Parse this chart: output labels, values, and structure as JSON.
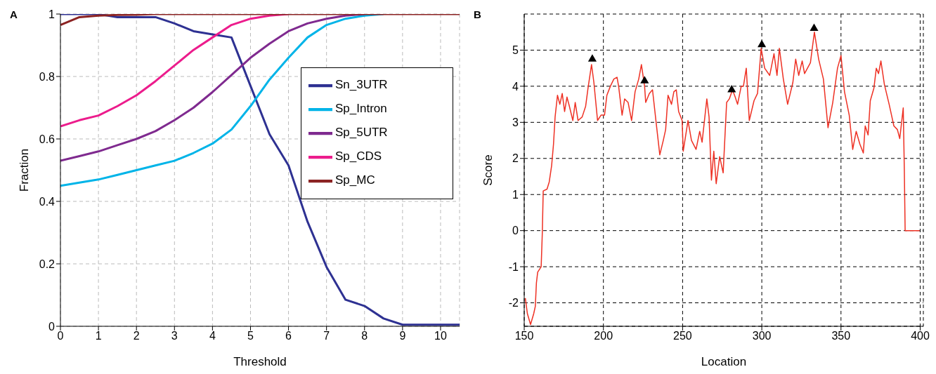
{
  "chart_data": [
    {
      "type": "line",
      "title": "A",
      "xlabel": "Threshold",
      "ylabel": "Fraction",
      "x": [
        0,
        0.5,
        1,
        1.5,
        2,
        2.5,
        3,
        3.5,
        4,
        4.5,
        5,
        5.5,
        6,
        6.5,
        7,
        7.5,
        8,
        8.5,
        9,
        9.5,
        10,
        10.5
      ],
      "xlim": [
        0,
        10.5
      ],
      "xticks": [
        0,
        1,
        2,
        3,
        4,
        5,
        6,
        7,
        8,
        9,
        10
      ],
      "ylim": [
        0,
        1
      ],
      "yticks": [
        0,
        0.2,
        0.4,
        0.6,
        0.8,
        1
      ],
      "grid": true,
      "legend": "right",
      "series": [
        {
          "name": "Sn_3UTR",
          "color": "#2e3192",
          "values": [
            1,
            1,
            1,
            0.99,
            0.99,
            0.99,
            0.97,
            0.945,
            0.935,
            0.925,
            0.77,
            0.615,
            0.515,
            0.335,
            0.19,
            0.085,
            0.065,
            0.025,
            0.005,
            0.005,
            0.005,
            0.005
          ]
        },
        {
          "name": "Sp_Intron",
          "color": "#00b4e8",
          "values": [
            0.45,
            0.46,
            0.47,
            0.485,
            0.5,
            0.515,
            0.53,
            0.555,
            0.585,
            0.63,
            0.705,
            0.79,
            0.86,
            0.925,
            0.965,
            0.985,
            0.995,
            1,
            null,
            null,
            null,
            null
          ]
        },
        {
          "name": "Sp_5UTR",
          "color": "#7f2a8f",
          "values": [
            0.53,
            0.545,
            0.56,
            0.58,
            0.6,
            0.625,
            0.66,
            0.7,
            0.75,
            0.805,
            0.86,
            0.905,
            0.945,
            0.97,
            0.985,
            0.995,
            1,
            null,
            null,
            null,
            null,
            null
          ]
        },
        {
          "name": "Sp_CDS",
          "color": "#ec1c8c",
          "values": [
            0.64,
            0.66,
            0.675,
            0.705,
            0.74,
            0.785,
            0.835,
            0.885,
            0.925,
            0.965,
            0.985,
            0.995,
            1,
            null,
            null,
            null,
            null,
            null,
            null,
            null,
            null,
            null
          ]
        },
        {
          "name": "Sp_MC",
          "color": "#8b2323",
          "values": [
            0.965,
            0.99,
            0.995,
            0.997,
            0.998,
            1,
            1,
            1,
            1,
            1,
            1,
            1,
            1,
            1,
            1,
            1,
            1,
            1,
            1,
            1,
            1,
            1
          ]
        }
      ]
    },
    {
      "type": "line",
      "title": "B",
      "xlabel": "Location",
      "ylabel": "Score",
      "xlim": [
        150,
        402
      ],
      "xticks": [
        150,
        200,
        250,
        300,
        350,
        400
      ],
      "ylim": [
        -2.65,
        6
      ],
      "yticks": [
        -2,
        -1,
        0,
        1,
        2,
        3,
        4,
        5
      ],
      "grid": true,
      "series": [
        {
          "color": "#ee3124",
          "x": [
            150.7,
            152,
            154,
            156,
            157,
            157.7,
            158.5,
            160.7,
            161.4,
            162,
            164.4,
            165.8,
            167.3,
            168.5,
            169.5,
            171,
            172.5,
            174,
            175.5,
            177,
            178.5,
            180.7,
            182.2,
            184,
            186.6,
            188.8,
            190.3,
            192.5,
            194,
            196.3,
            198.5,
            200.7,
            202.2,
            204.4,
            206.6,
            208.6,
            209.6,
            211.8,
            213.4,
            215.6,
            217.8,
            220,
            222.3,
            224,
            226,
            226.7,
            229,
            231,
            233.4,
            235.6,
            237.8,
            239.3,
            240.8,
            243,
            244.5,
            246,
            247.5,
            249.7,
            250.4,
            253.4,
            255.6,
            258.5,
            260.8,
            262.3,
            265.3,
            266.7,
            268.2,
            269.7,
            271.2,
            273.4,
            275.6,
            277.8,
            279.5,
            281.5,
            283.2,
            284.7,
            287,
            288.4,
            290.2,
            292.1,
            295.1,
            297.3,
            299.6,
            301.8,
            305,
            307.7,
            309.6,
            311.1,
            313.6,
            316.3,
            319.6,
            321.4,
            323.3,
            325.5,
            327,
            330.7,
            333.2,
            335.9,
            338.9,
            341.8,
            344.8,
            347.8,
            350,
            352.2,
            355.2,
            357.4,
            359.6,
            361.9,
            364.1,
            365.3,
            367.1,
            368.5,
            370.8,
            372.3,
            373.7,
            375.2,
            377.4,
            380.4,
            383.4,
            385.6,
            387.1,
            389.3,
            390,
            390.5,
            399.7
          ],
          "values": [
            -1.87,
            -2.3,
            -2.6,
            -2.3,
            -2.1,
            -1.45,
            -1.15,
            -1.0,
            -0.1,
            1.1,
            1.15,
            1.35,
            1.8,
            2.4,
            3.15,
            3.75,
            3.5,
            3.8,
            3.3,
            3.7,
            3.45,
            3.05,
            3.55,
            3.05,
            3.15,
            3.45,
            3.95,
            4.6,
            4.1,
            3.05,
            3.2,
            3.2,
            3.75,
            4.0,
            4.2,
            4.25,
            4.0,
            3.2,
            3.65,
            3.55,
            3.05,
            3.85,
            4.2,
            4.6,
            4.0,
            3.55,
            3.8,
            3.9,
            2.95,
            2.1,
            2.5,
            2.8,
            3.75,
            3.5,
            3.85,
            3.9,
            3.3,
            3.05,
            2.2,
            3.05,
            2.5,
            2.25,
            2.75,
            2.45,
            3.65,
            3.15,
            1.4,
            2.2,
            1.3,
            2.05,
            1.6,
            3.55,
            3.65,
            3.9,
            3.7,
            3.5,
            4.0,
            4.0,
            4.5,
            3.05,
            3.6,
            3.8,
            5.05,
            4.5,
            4.3,
            4.9,
            4.3,
            5.05,
            4.2,
            3.5,
            4.1,
            4.75,
            4.3,
            4.7,
            4.35,
            4.65,
            5.5,
            4.75,
            4.2,
            2.85,
            3.55,
            4.5,
            4.85,
            3.85,
            3.2,
            2.25,
            2.75,
            2.4,
            2.15,
            2.9,
            2.65,
            3.6,
            3.95,
            4.5,
            4.35,
            4.7,
            4.05,
            3.5,
            2.9,
            2.8,
            2.55,
            3.4,
            1.65,
            0,
            0
          ]
        },
        {
          "type": "scatter",
          "marker": "triangle",
          "color": "#000000",
          "x": [
            193,
            226,
            281,
            300,
            333
          ],
          "values": [
            4.75,
            4.15,
            3.9,
            5.15,
            5.6
          ]
        }
      ]
    }
  ]
}
